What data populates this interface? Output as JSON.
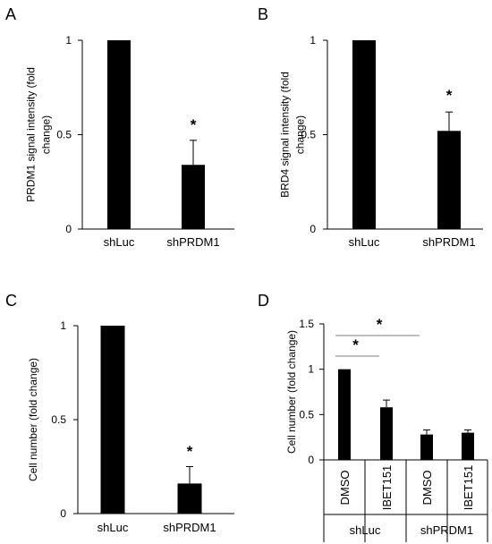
{
  "chart_data": [
    {
      "type": "bar",
      "panel": "A",
      "categories": [
        "shLuc",
        "shPRDM1"
      ],
      "values": [
        1,
        0.34
      ],
      "errors": [
        0,
        0.13
      ],
      "significance": [
        "",
        "*"
      ],
      "ylabel": [
        "PRDM1 signal intensity (fold",
        "change)"
      ],
      "ylim": [
        0,
        1
      ],
      "yticks": [
        0,
        0.5,
        1
      ],
      "ytick_labels": [
        "0",
        "0.5",
        "1"
      ],
      "grid": false
    },
    {
      "type": "bar",
      "panel": "B",
      "categories": [
        "shLuc",
        "shPRDM1"
      ],
      "values": [
        1,
        0.52
      ],
      "errors": [
        0,
        0.1
      ],
      "significance": [
        "",
        "*"
      ],
      "ylabel": [
        "BRD4 signal intensity (fold",
        "change)"
      ],
      "ylim": [
        0,
        1
      ],
      "yticks": [
        0,
        0.5,
        1
      ],
      "ytick_labels": [
        "0",
        "0.5",
        "1"
      ],
      "grid": false
    },
    {
      "type": "bar",
      "panel": "C",
      "categories": [
        "shLuc",
        "shPRDM1"
      ],
      "values": [
        1,
        0.16
      ],
      "errors": [
        0,
        0.09
      ],
      "significance": [
        "",
        "*"
      ],
      "ylabel": [
        "Cell number (fold change)"
      ],
      "ylim": [
        0,
        1
      ],
      "yticks": [
        0,
        0.5,
        1
      ],
      "ytick_labels": [
        "0",
        "0.5",
        "1"
      ],
      "grid": false
    },
    {
      "type": "bar",
      "panel": "D",
      "categories": [
        "DMSO",
        "IBET151",
        "DMSO",
        "IBET151"
      ],
      "groups": [
        "shLuc",
        "shPRDM1"
      ],
      "values": [
        1,
        0.58,
        0.28,
        0.3
      ],
      "errors": [
        0,
        0.08,
        0.05,
        0.03
      ],
      "comparisons": [
        {
          "from": 0,
          "to": 1,
          "label": "*"
        },
        {
          "from": 0,
          "to": 2,
          "label": "*"
        }
      ],
      "ylabel": [
        "Cell number (fold change)"
      ],
      "ylim": [
        0,
        1.5
      ],
      "yticks": [
        0,
        0.5,
        1,
        1.5
      ],
      "ytick_labels": [
        "0",
        "0.5",
        "1",
        "1.5"
      ],
      "grid": false
    }
  ]
}
